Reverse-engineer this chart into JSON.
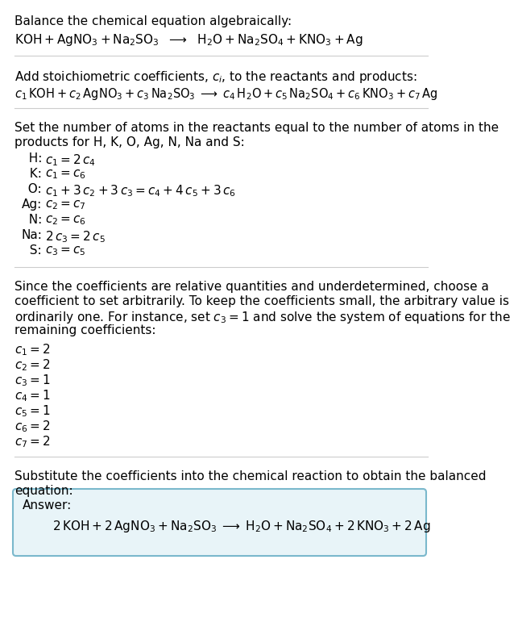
{
  "bg_color": "#ffffff",
  "text_color": "#000000",
  "label_fs": 11.0,
  "math_fs": 11.0,
  "eq_fs": 10.5,
  "answer_box_color": "#e8f4f8",
  "answer_border_color": "#7ab8cc",
  "line_color": "#cccccc",
  "section1_line1": "Balance the chemical equation algebraically:",
  "section1_eq": "$\\mathrm{KOH + AgNO_3 + Na_2SO_3 \\ \\ \\longrightarrow \\ \\ H_2O + Na_2SO_4 + KNO_3 + Ag}$",
  "section2_line1": "Add stoichiometric coefficients, $c_i$, to the reactants and products:",
  "section2_eq": "$c_1\\,\\mathrm{KOH} + c_2\\,\\mathrm{AgNO_3} + c_3\\,\\mathrm{Na_2SO_3} \\;\\longrightarrow\\; c_4\\,\\mathrm{H_2O} + c_5\\,\\mathrm{Na_2SO_4} + c_6\\,\\mathrm{KNO_3} + c_7\\,\\mathrm{Ag}$",
  "section3_line1": "Set the number of atoms in the reactants equal to the number of atoms in the",
  "section3_line2": "products for H, K, O, Ag, N, Na and S:",
  "atom_rows": [
    [
      "  H:",
      "$c_1 = 2\\,c_4$"
    ],
    [
      "  K:",
      "$c_1 = c_6$"
    ],
    [
      "  O:",
      "$c_1 + 3\\,c_2 + 3\\,c_3 = c_4 + 4\\,c_5 + 3\\,c_6$"
    ],
    [
      "Ag:",
      "$c_2 = c_7$"
    ],
    [
      "  N:",
      "$c_2 = c_6$"
    ],
    [
      "Na:",
      "$2\\,c_3 = 2\\,c_5$"
    ],
    [
      "  S:",
      "$c_3 = c_5$"
    ]
  ],
  "section4_lines": [
    "Since the coefficients are relative quantities and underdetermined, choose a",
    "coefficient to set arbitrarily. To keep the coefficients small, the arbitrary value is",
    "ordinarily one. For instance, set $c_3 = 1$ and solve the system of equations for the",
    "remaining coefficients:"
  ],
  "coeff_rows": [
    "$c_1 = 2$",
    "$c_2 = 2$",
    "$c_3 = 1$",
    "$c_4 = 1$",
    "$c_5 = 1$",
    "$c_6 = 2$",
    "$c_7 = 2$"
  ],
  "section5_line1": "Substitute the coefficients into the chemical reaction to obtain the balanced",
  "section5_line2": "equation:",
  "answer_label": "Answer:",
  "answer_eq": "$\\mathrm{2\\,KOH + 2\\,AgNO_3 + Na_2SO_3 \\;\\longrightarrow\\; H_2O + Na_2SO_4 + 2\\,KNO_3 + 2\\,Ag}$"
}
